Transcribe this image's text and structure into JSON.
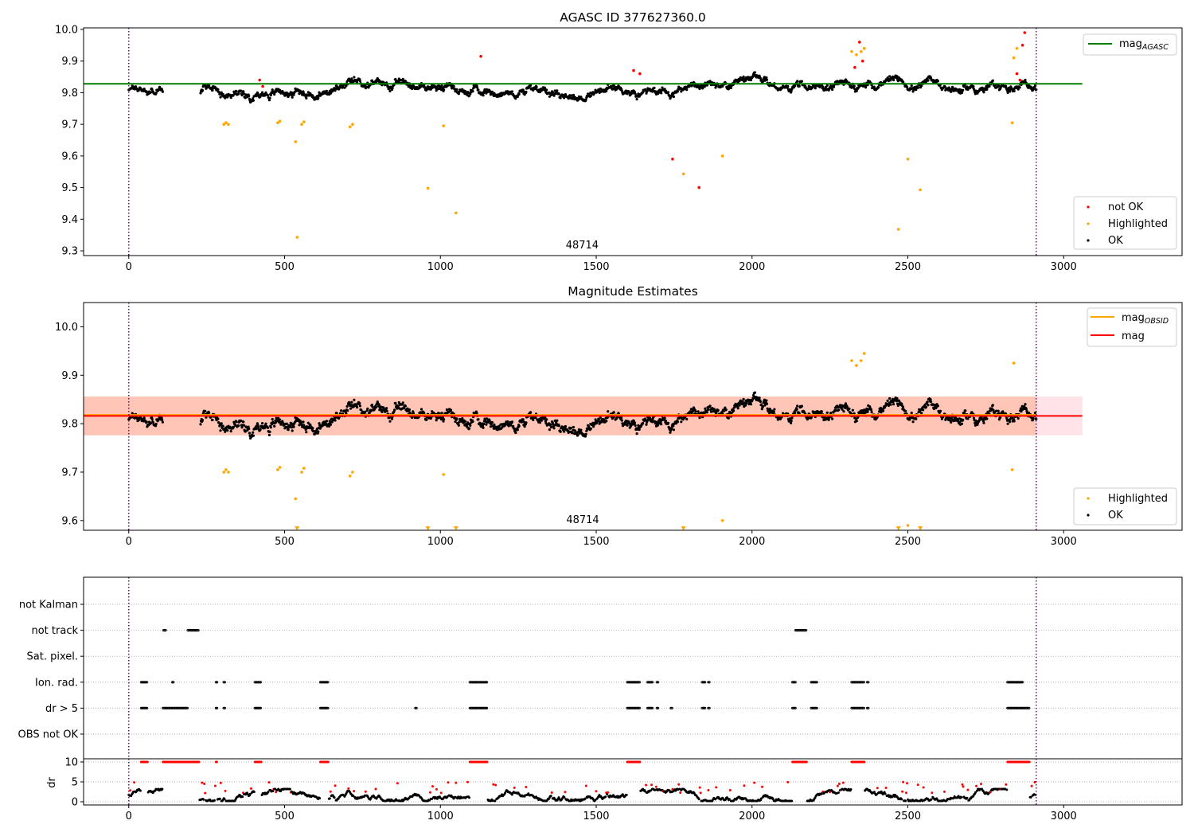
{
  "chart_data": [
    {
      "type": "scatter",
      "title": "AGASC ID 377627360.0",
      "xlim": [
        -145,
        3380
      ],
      "ylim": [
        9.285,
        10.005
      ],
      "xticks": [
        0,
        500,
        1000,
        1500,
        2000,
        2500,
        3000
      ],
      "yticks": [
        9.3,
        9.4,
        9.5,
        9.6,
        9.7,
        9.8,
        9.9,
        10.0
      ],
      "ytick_labels": [
        "9.3",
        "9.4",
        "9.5",
        "9.6",
        "9.7",
        "9.8",
        "9.9",
        "10.0"
      ],
      "obsid_text": "48714",
      "obsid_text_x": 1455,
      "vlines_x": [
        0,
        2912
      ],
      "hline": {
        "name": "mag",
        "sub": "AGASC",
        "y": 9.828,
        "x_end": 3060,
        "color": "#008000"
      },
      "legend_top": [
        {
          "name": "mag",
          "sub": "AGASC",
          "kind": "line",
          "color": "#008000"
        }
      ],
      "legend_bottom": [
        {
          "name": "not OK",
          "kind": "dot",
          "color": "#ff0000"
        },
        {
          "name": "Highlighted",
          "kind": "dot",
          "color": "#ffa500"
        },
        {
          "name": "OK",
          "kind": "dot",
          "color": "#000000"
        }
      ],
      "series": [
        {
          "name": "not OK",
          "color": "#ff0000",
          "x": [
            420,
            430,
            1130,
            1620,
            1640,
            1745,
            1830,
            2330,
            2345,
            2355,
            2850,
            2860,
            2868,
            2875
          ],
          "y": [
            9.84,
            9.82,
            9.915,
            9.87,
            9.86,
            9.59,
            9.5,
            9.88,
            9.96,
            9.9,
            9.86,
            9.84,
            9.95,
            9.99
          ]
        },
        {
          "name": "Highlighted",
          "color": "#ffa500",
          "x": [
            305,
            312,
            320,
            478,
            485,
            535,
            540,
            555,
            562,
            710,
            718,
            960,
            1010,
            1050,
            1780,
            1905,
            2320,
            2335,
            2350,
            2360,
            2470,
            2500,
            2540,
            2835,
            2840,
            2850
          ],
          "y": [
            9.7,
            9.705,
            9.7,
            9.705,
            9.71,
            9.645,
            9.343,
            9.7,
            9.708,
            9.692,
            9.7,
            9.498,
            9.695,
            9.42,
            9.543,
            9.6,
            9.93,
            9.92,
            9.93,
            9.94,
            9.368,
            9.59,
            9.493,
            9.705,
            9.91,
            9.94
          ]
        },
        {
          "name": "OK",
          "color": "#000000",
          "x_range": [
            0,
            2912
          ],
          "y_base": 9.815,
          "y_spread": 0.085
        }
      ]
    },
    {
      "type": "scatter",
      "title": "Magnitude Estimates",
      "xlim": [
        -145,
        3380
      ],
      "ylim": [
        9.58,
        10.05
      ],
      "xticks": [
        0,
        500,
        1000,
        1500,
        2000,
        2500,
        3000
      ],
      "yticks": [
        9.6,
        9.7,
        9.8,
        9.9,
        10.0
      ],
      "ytick_labels": [
        "9.6",
        "9.7",
        "9.8",
        "9.9",
        "10.0"
      ],
      "obsid_text": "48714",
      "obsid_text_x": 1455,
      "vlines_x": [
        0,
        2912
      ],
      "bands": [
        {
          "x_start": -145,
          "x_end": 3060,
          "y_low": 9.776,
          "y_high": 9.856,
          "color": "#ffc0cb"
        },
        {
          "x_start": -145,
          "x_end": 2912,
          "y_low": 9.776,
          "y_high": 9.856,
          "color": "#ffa07a"
        }
      ],
      "hlines": [
        {
          "name": "mag",
          "sub": "OBSID",
          "y": 9.818,
          "x_end": 2912,
          "color": "#ffa500"
        },
        {
          "name": "mag",
          "sub": "",
          "y": 9.816,
          "x_end": 3060,
          "color": "#ff0000"
        }
      ],
      "legend_top": [
        {
          "name": "mag",
          "sub": "OBSID",
          "kind": "line",
          "color": "#ffa500"
        },
        {
          "name": "mag",
          "sub": "",
          "kind": "line",
          "color": "#ff0000"
        }
      ],
      "legend_bottom": [
        {
          "name": "Highlighted",
          "kind": "dot",
          "color": "#ffa500"
        },
        {
          "name": "OK",
          "kind": "dot",
          "color": "#000000"
        }
      ],
      "series": [
        {
          "name": "Highlighted",
          "color": "#ffa500",
          "x": [
            305,
            312,
            320,
            478,
            485,
            535,
            555,
            562,
            710,
            718,
            1010,
            1905,
            2320,
            2335,
            2350,
            2360,
            2500,
            2835,
            2840
          ],
          "y": [
            9.7,
            9.705,
            9.7,
            9.705,
            9.71,
            9.645,
            9.7,
            9.708,
            9.692,
            9.7,
            9.695,
            9.6,
            9.93,
            9.92,
            9.93,
            9.945,
            9.59,
            9.705,
            9.925
          ]
        },
        {
          "name": "Highlighted (below range)",
          "color": "#ffa500",
          "marker": "triangle-down",
          "x": [
            540,
            960,
            1050,
            1780,
            2470,
            2540
          ],
          "y": [
            9.583,
            9.583,
            9.583,
            9.583,
            9.583,
            9.583
          ]
        },
        {
          "name": "OK",
          "color": "#000000",
          "x_range": [
            0,
            2912
          ],
          "y_base": 9.815,
          "y_spread": 0.085
        }
      ]
    },
    {
      "type": "scatter",
      "title": "",
      "xlim": [
        -145,
        3380
      ],
      "xticks": [
        0,
        500,
        1000,
        1500,
        2000,
        2500,
        3000
      ],
      "vlines_x": [
        0,
        2912
      ],
      "flag_rows": [
        "not Kalman",
        "not track",
        "Sat. pixel.",
        "Ion. rad.",
        "dr > 5",
        "OBS not OK"
      ],
      "flag_spans": {
        "not track": [
          [
            112,
            120
          ],
          [
            190,
            225
          ],
          [
            2140,
            2175
          ]
        ],
        "Ion. rad.": [
          [
            40,
            60
          ],
          [
            140,
            145
          ],
          [
            280,
            283
          ],
          [
            305,
            308
          ],
          [
            405,
            425
          ],
          [
            615,
            640
          ],
          [
            1095,
            1150
          ],
          [
            1600,
            1640
          ],
          [
            1665,
            1680
          ],
          [
            1695,
            1700
          ],
          [
            1840,
            1850
          ],
          [
            1860,
            1865
          ],
          [
            2130,
            2140
          ],
          [
            2190,
            2210
          ],
          [
            2320,
            2360
          ],
          [
            2370,
            2375
          ],
          [
            2820,
            2870
          ]
        ],
        "dr > 5": [
          [
            40,
            60
          ],
          [
            110,
            190
          ],
          [
            280,
            283
          ],
          [
            305,
            308
          ],
          [
            405,
            425
          ],
          [
            615,
            640
          ],
          [
            920,
            925
          ],
          [
            1095,
            1150
          ],
          [
            1600,
            1640
          ],
          [
            1665,
            1680
          ],
          [
            1695,
            1700
          ],
          [
            1740,
            1745
          ],
          [
            1840,
            1850
          ],
          [
            1860,
            1865
          ],
          [
            2130,
            2140
          ],
          [
            2190,
            2210
          ],
          [
            2320,
            2360
          ],
          [
            2370,
            2375
          ],
          [
            2820,
            2890
          ]
        ]
      },
      "dr_panel": {
        "ylabel": "dr",
        "ylim": [
          -0.8,
          10.8
        ],
        "yticks": [
          0,
          5,
          10
        ],
        "ytick_labels": [
          "0",
          "5",
          "10"
        ],
        "clip_y": 10,
        "red_spans": [
          [
            40,
            60
          ],
          [
            110,
            225
          ],
          [
            280,
            283
          ],
          [
            405,
            425
          ],
          [
            615,
            640
          ],
          [
            1095,
            1150
          ],
          [
            1600,
            1640
          ],
          [
            2130,
            2175
          ],
          [
            2320,
            2360
          ],
          [
            2820,
            2890
          ]
        ]
      }
    }
  ]
}
